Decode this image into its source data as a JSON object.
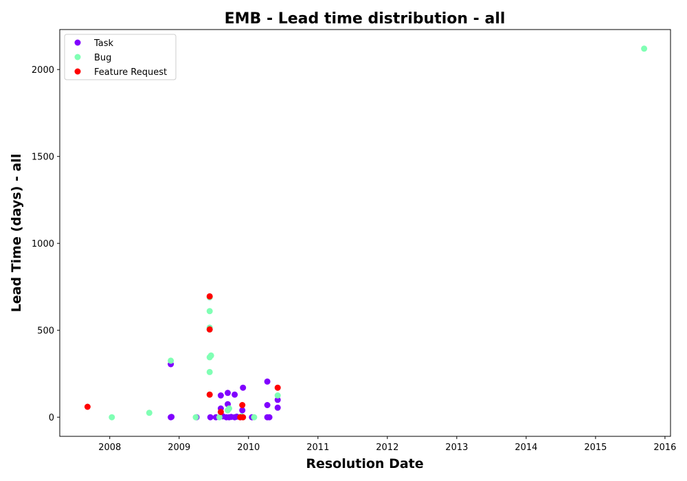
{
  "chart_data": {
    "type": "scatter",
    "title": "EMB - Lead time distribution - all",
    "xlabel": "Resolution Date",
    "ylabel": "Lead Time (days) - all",
    "xlim": [
      2007.28,
      2016.08
    ],
    "ylim": [
      -110,
      2230
    ],
    "xticks": [
      2008,
      2009,
      2010,
      2011,
      2012,
      2013,
      2014,
      2015,
      2016
    ],
    "yticks": [
      0,
      500,
      1000,
      1500,
      2000
    ],
    "legend_position": "top-left",
    "grid": false,
    "series": [
      {
        "name": "Task",
        "color": "#8000ff",
        "points": [
          [
            2008.88,
            305
          ],
          [
            2008.88,
            0
          ],
          [
            2008.89,
            2
          ],
          [
            2009.25,
            0
          ],
          [
            2009.45,
            0
          ],
          [
            2009.53,
            0
          ],
          [
            2009.6,
            50
          ],
          [
            2009.6,
            125
          ],
          [
            2009.63,
            5
          ],
          [
            2009.68,
            0
          ],
          [
            2009.7,
            140
          ],
          [
            2009.7,
            75
          ],
          [
            2009.72,
            0
          ],
          [
            2009.75,
            2
          ],
          [
            2009.8,
            130
          ],
          [
            2009.8,
            0
          ],
          [
            2009.83,
            3
          ],
          [
            2009.88,
            0
          ],
          [
            2009.91,
            40
          ],
          [
            2009.92,
            170
          ],
          [
            2010.05,
            0
          ],
          [
            2010.27,
            205
          ],
          [
            2010.27,
            70
          ],
          [
            2010.27,
            0
          ],
          [
            2010.3,
            0
          ],
          [
            2010.42,
            100
          ],
          [
            2010.42,
            55
          ]
        ]
      },
      {
        "name": "Bug",
        "color": "#80ffb4",
        "points": [
          [
            2008.03,
            0
          ],
          [
            2008.57,
            25
          ],
          [
            2008.88,
            325
          ],
          [
            2009.24,
            0
          ],
          [
            2009.44,
            690
          ],
          [
            2009.44,
            610
          ],
          [
            2009.44,
            515
          ],
          [
            2009.44,
            505
          ],
          [
            2009.44,
            345
          ],
          [
            2009.46,
            355
          ],
          [
            2009.44,
            260
          ],
          [
            2009.44,
            130
          ],
          [
            2009.58,
            0
          ],
          [
            2009.7,
            40
          ],
          [
            2009.72,
            50
          ],
          [
            2009.9,
            5
          ],
          [
            2010.08,
            0
          ],
          [
            2010.42,
            125
          ],
          [
            2015.7,
            2120
          ]
        ]
      },
      {
        "name": "Feature Request",
        "color": "#ff0000",
        "points": [
          [
            2007.68,
            60
          ],
          [
            2009.44,
            695
          ],
          [
            2009.44,
            505
          ],
          [
            2009.44,
            130
          ],
          [
            2009.6,
            30
          ],
          [
            2009.88,
            0
          ],
          [
            2009.92,
            0
          ],
          [
            2009.91,
            70
          ],
          [
            2010.42,
            170
          ]
        ]
      }
    ]
  }
}
